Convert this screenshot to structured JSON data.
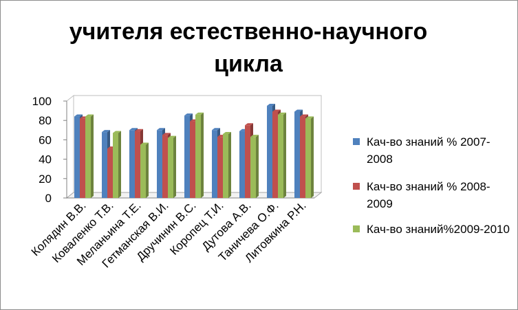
{
  "chart_data": {
    "type": "bar",
    "title": "учителя естественно-научного цикла",
    "categories": [
      "Колядин В.В.",
      "Коваленко Т.В.",
      "Меланьина Т.Е.",
      "Гетманская В.И.",
      "Дручинин В.С.",
      "Коропец Т.И.",
      "Дутова А.В.",
      "Таничева О.Ф.",
      "Литовкина Р.Н."
    ],
    "series": [
      {
        "name": "Кач-во знаний % 2007-2008",
        "color": "#4f81bd",
        "values": [
          84,
          68,
          70,
          70,
          85,
          70,
          69,
          95,
          89
        ]
      },
      {
        "name": "Кач-во знаний % 2008-2009",
        "color": "#c0504d",
        "values": [
          82,
          51,
          69,
          65,
          79,
          63,
          75,
          89,
          84
        ]
      },
      {
        "name": "Кач-во знаний%2009-2010",
        "color": "#9bbb59",
        "values": [
          84,
          67,
          55,
          62,
          86,
          66,
          63,
          86,
          82
        ]
      }
    ],
    "ylim": [
      0,
      100
    ],
    "yticks": [
      0,
      20,
      40,
      60,
      80,
      100
    ],
    "grid": false,
    "legend": "right",
    "style": "3d-clustered-column"
  }
}
